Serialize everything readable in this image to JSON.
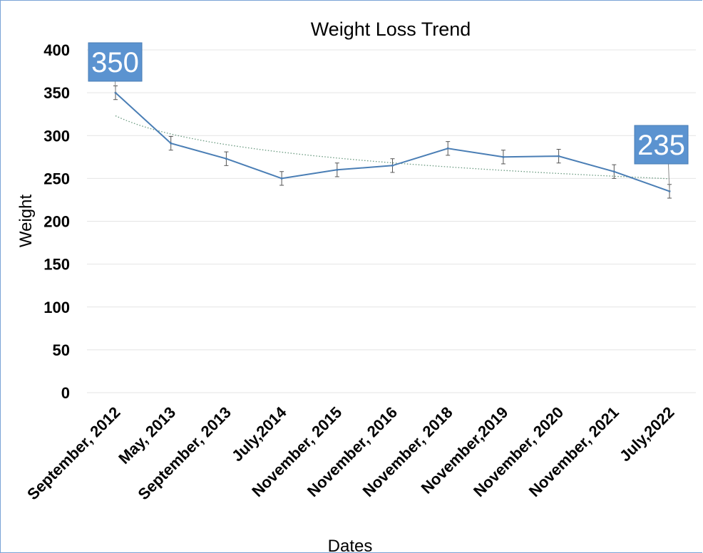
{
  "chart_data": {
    "type": "line",
    "title": "Weight Loss Trend",
    "xlabel": "Dates",
    "ylabel": "Weight",
    "ylim": [
      0,
      400
    ],
    "yticks": [
      "0",
      "50",
      "100",
      "150",
      "200",
      "250",
      "300",
      "350",
      "400"
    ],
    "categories": [
      "September, 2012",
      "May, 2013",
      "September, 2013",
      "July,2014",
      "November, 2015",
      "November, 2016",
      "November, 2018",
      "November,2019",
      "November, 2020",
      "November, 2021",
      "July,2022"
    ],
    "series": [
      {
        "values": [
          350,
          291,
          273,
          250,
          260,
          265,
          285,
          275,
          276,
          258,
          235
        ],
        "error": 8,
        "color": "#4a7eb5"
      }
    ],
    "trendline": {
      "type": "logarithmic",
      "style": "dotted",
      "color": "#6a9a80"
    },
    "data_labels": [
      {
        "index": 0,
        "text": "350"
      },
      {
        "index": 10,
        "text": "235"
      }
    ],
    "grid": true,
    "legend": "none",
    "colors": {
      "line": "#4a7eb5",
      "callout": "#5b93d0",
      "grid": "#e4e4e4",
      "errorbar": "#555555"
    }
  }
}
